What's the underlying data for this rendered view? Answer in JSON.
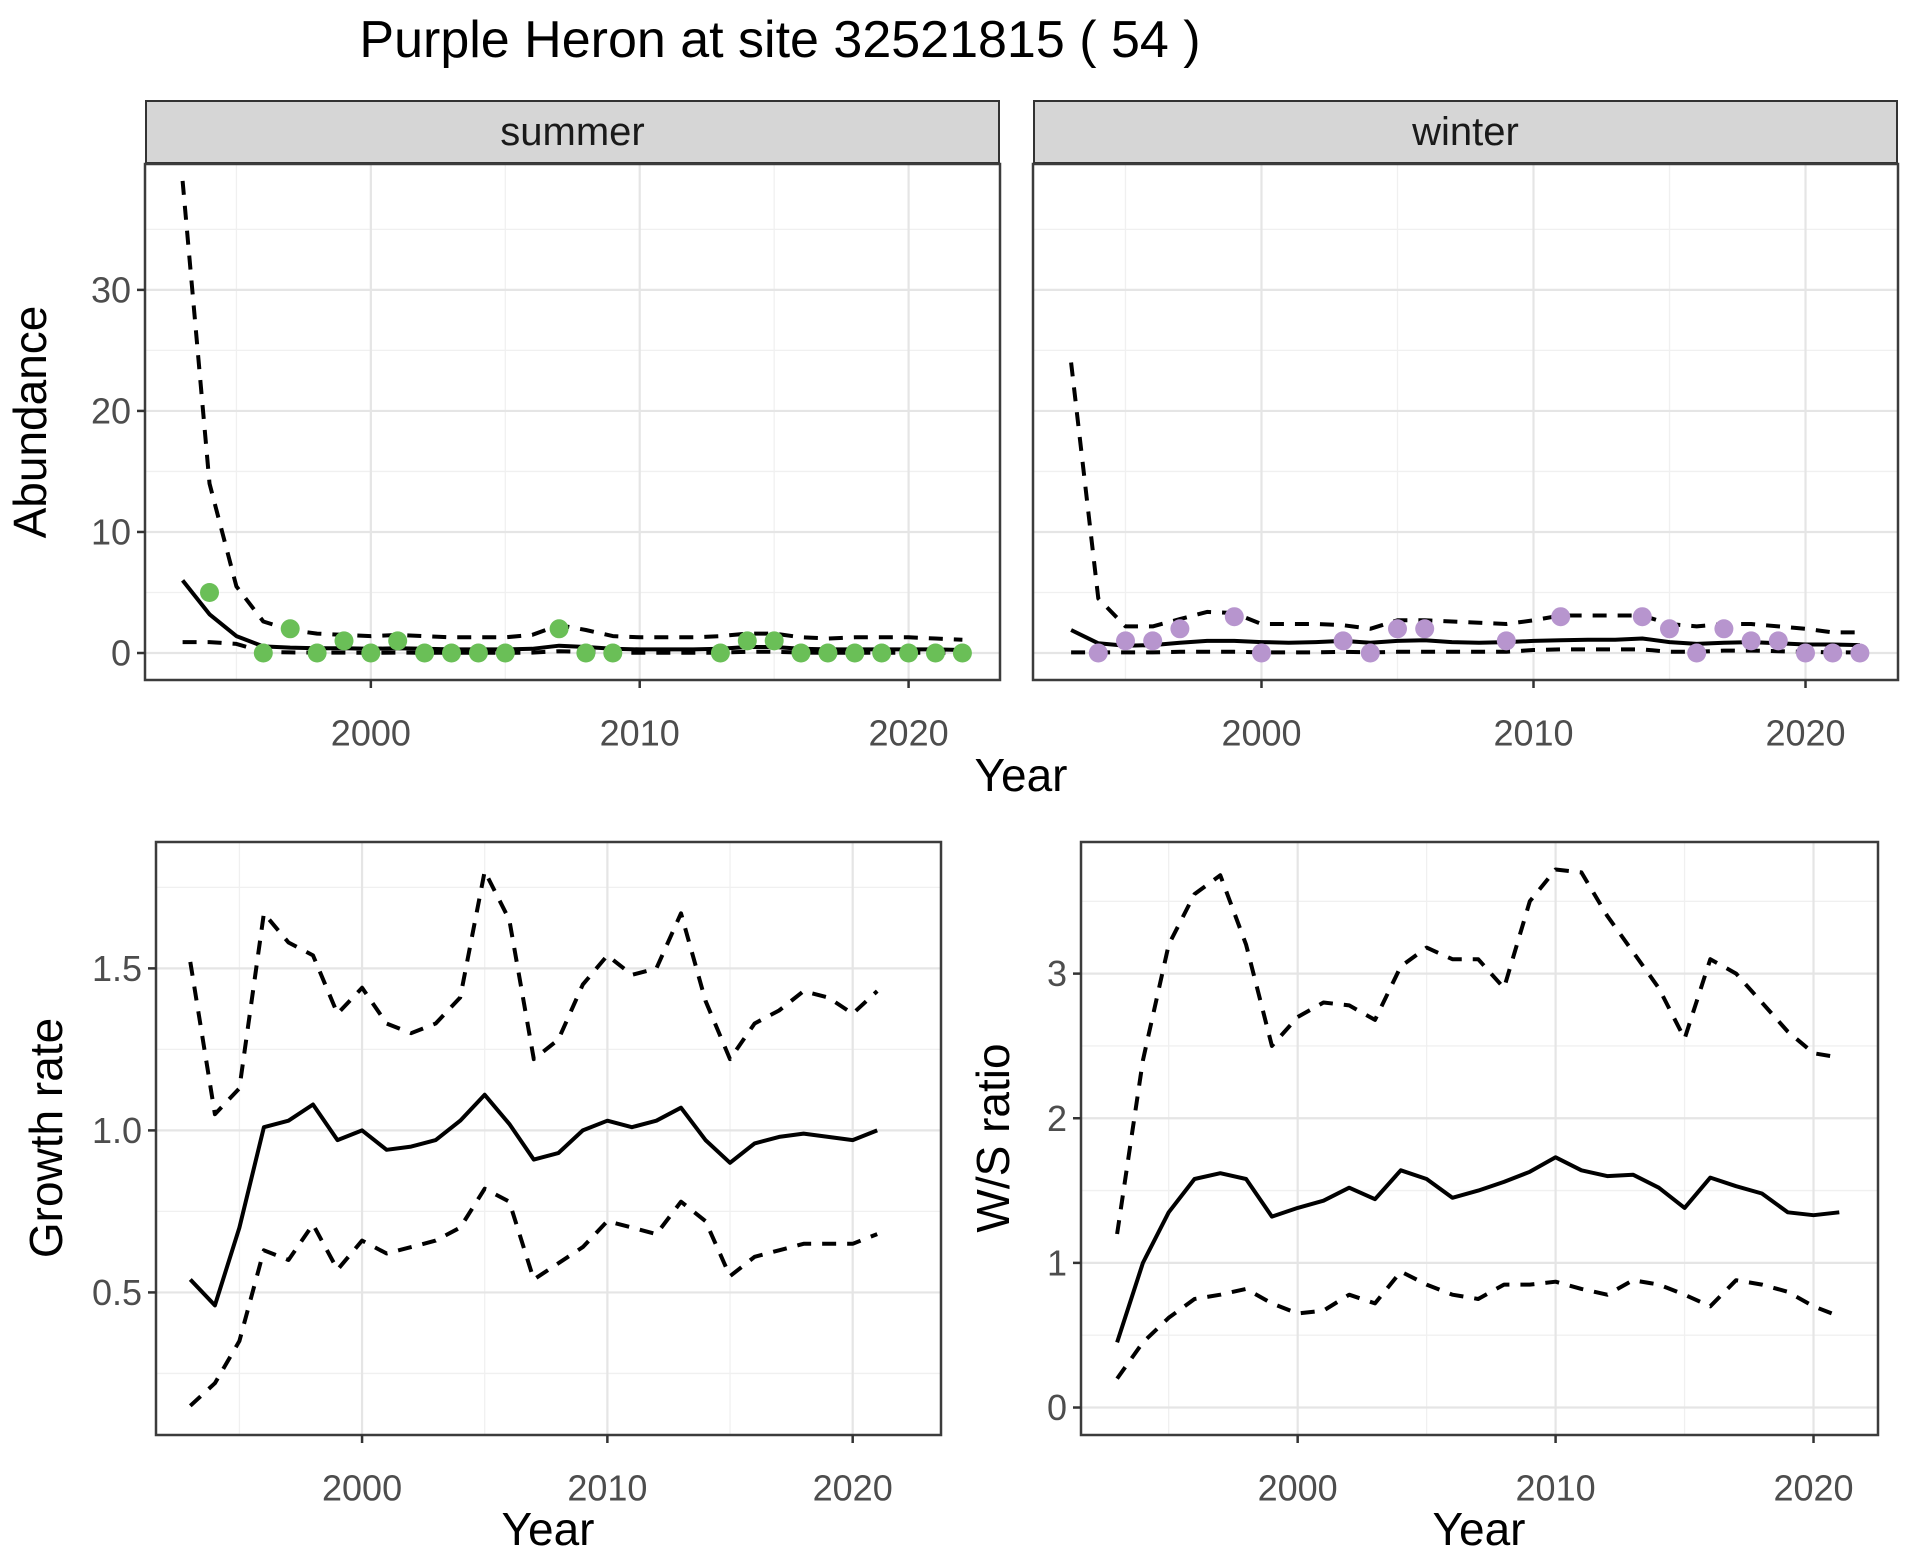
{
  "title": "Purple Heron at site 32521815 ( 54 )",
  "facets": {
    "summer_label": "summer",
    "winter_label": "winter"
  },
  "axes": {
    "abundance_label": "Abundance",
    "year_label": "Year",
    "growth_label": "Growth rate",
    "ws_label": "W/S ratio"
  },
  "colors": {
    "summer_points": "#6abf57",
    "winter_points": "#b795ce",
    "line": "#000000",
    "strip_bg": "#d6d6d6"
  },
  "chart_data": [
    {
      "id": "abundance_summer",
      "type": "line",
      "facet": "summer",
      "xlabel": "Year",
      "ylabel": "Abundance",
      "xlim": [
        1991.6,
        2023.4
      ],
      "ylim": [
        -2.23,
        40.4
      ],
      "xticks": [
        2000,
        2010,
        2020
      ],
      "xtick_labels": [
        "2000",
        "2010",
        "2020"
      ],
      "yticks": [
        0,
        10,
        20,
        30
      ],
      "ytick_labels": [
        "0",
        "10",
        "20",
        "30"
      ],
      "x_minor": [
        1995,
        2005,
        2015
      ],
      "y_minor": [
        5,
        15,
        25,
        35
      ],
      "show_y_labels": true,
      "series": [
        {
          "name": "median",
          "style": "solid",
          "x": [
            1993,
            1994,
            1995,
            1996,
            1997,
            1998,
            1999,
            2000,
            2001,
            2002,
            2003,
            2004,
            2005,
            2006,
            2007,
            2008,
            2009,
            2010,
            2011,
            2012,
            2013,
            2014,
            2015,
            2016,
            2017,
            2018,
            2019,
            2020,
            2021,
            2022
          ],
          "y": [
            6,
            3.2,
            1.4,
            0.55,
            0.45,
            0.4,
            0.4,
            0.35,
            0.4,
            0.35,
            0.3,
            0.3,
            0.3,
            0.35,
            0.6,
            0.5,
            0.35,
            0.3,
            0.3,
            0.3,
            0.35,
            0.5,
            0.5,
            0.35,
            0.3,
            0.3,
            0.3,
            0.3,
            0.3,
            0.25
          ]
        },
        {
          "name": "upper_ci",
          "style": "dashed",
          "x": [
            1993,
            1994,
            1995,
            1996,
            1997,
            1998,
            1999,
            2000,
            2001,
            2002,
            2003,
            2004,
            2005,
            2006,
            2007,
            2008,
            2009,
            2010,
            2011,
            2012,
            2013,
            2014,
            2015,
            2016,
            2017,
            2018,
            2019,
            2020,
            2021,
            2022
          ],
          "y": [
            39,
            14,
            5.5,
            2.6,
            1.9,
            1.6,
            1.5,
            1.4,
            1.5,
            1.4,
            1.3,
            1.3,
            1.3,
            1.5,
            2.3,
            1.9,
            1.4,
            1.3,
            1.3,
            1.3,
            1.4,
            1.6,
            1.6,
            1.3,
            1.2,
            1.3,
            1.3,
            1.3,
            1.2,
            1.1
          ]
        },
        {
          "name": "lower_ci",
          "style": "dashed",
          "x": [
            1993,
            1994,
            1995,
            1996,
            1997,
            1998,
            1999,
            2000,
            2001,
            2002,
            2003,
            2004,
            2005,
            2006,
            2007,
            2008,
            2009,
            2010,
            2011,
            2012,
            2013,
            2014,
            2015,
            2016,
            2017,
            2018,
            2019,
            2020,
            2021,
            2022
          ],
          "y": [
            0.9,
            0.9,
            0.75,
            0.1,
            0.05,
            0.03,
            0.03,
            0.02,
            0.03,
            0.02,
            0.02,
            0.02,
            0.02,
            0.03,
            0.15,
            0.1,
            0.03,
            0.02,
            0.02,
            0.02,
            0.03,
            0.1,
            0.1,
            0.03,
            0.02,
            0.02,
            0.02,
            0.02,
            0.02,
            0.01
          ]
        }
      ],
      "points": {
        "name": "observed_summer_counts",
        "color": "#6abf57",
        "x": [
          1994,
          1996,
          1997,
          1998,
          1999,
          2000,
          2001,
          2002,
          2003,
          2004,
          2005,
          2007,
          2008,
          2009,
          2013,
          2014,
          2015,
          2016,
          2017,
          2018,
          2019,
          2020,
          2021,
          2022
        ],
        "y": [
          5,
          0,
          2,
          0,
          1,
          0,
          1,
          0,
          0,
          0,
          0,
          2,
          0,
          0,
          0,
          1,
          1,
          0,
          0,
          0,
          0,
          0,
          0,
          0
        ]
      }
    },
    {
      "id": "abundance_winter",
      "type": "line",
      "facet": "winter",
      "xlabel": "Year",
      "ylabel": "Abundance",
      "xlim": [
        1991.6,
        2023.4
      ],
      "ylim": [
        -2.23,
        40.4
      ],
      "xticks": [
        2000,
        2010,
        2020
      ],
      "xtick_labels": [
        "2000",
        "2010",
        "2020"
      ],
      "yticks": [
        0,
        10,
        20,
        30
      ],
      "ytick_labels": [
        "0",
        "10",
        "20",
        "30"
      ],
      "x_minor": [
        1995,
        2005,
        2015
      ],
      "y_minor": [
        5,
        15,
        25,
        35
      ],
      "show_y_labels": false,
      "series": [
        {
          "name": "median",
          "style": "solid",
          "x": [
            1993,
            1994,
            1995,
            1996,
            1997,
            1998,
            1999,
            2000,
            2001,
            2002,
            2003,
            2004,
            2005,
            2006,
            2007,
            2008,
            2009,
            2010,
            2011,
            2012,
            2013,
            2014,
            2015,
            2016,
            2017,
            2018,
            2019,
            2020,
            2021,
            2022
          ],
          "y": [
            1.9,
            0.8,
            0.6,
            0.65,
            0.85,
            1.0,
            1.0,
            0.9,
            0.85,
            0.9,
            1.0,
            0.85,
            1.0,
            1.05,
            0.9,
            0.85,
            0.9,
            1.0,
            1.05,
            1.1,
            1.1,
            1.2,
            0.9,
            0.75,
            0.85,
            0.9,
            0.8,
            0.7,
            0.7,
            0.65
          ]
        },
        {
          "name": "upper_ci",
          "style": "dashed",
          "x": [
            1993,
            1994,
            1995,
            1996,
            1997,
            1998,
            1999,
            2000,
            2001,
            2002,
            2003,
            2004,
            2005,
            2006,
            2007,
            2008,
            2009,
            2010,
            2011,
            2012,
            2013,
            2014,
            2015,
            2016,
            2017,
            2018,
            2019,
            2020,
            2021,
            2022
          ],
          "y": [
            24,
            4.5,
            2.2,
            2.2,
            2.8,
            3.4,
            3.3,
            2.4,
            2.4,
            2.4,
            2.3,
            2.0,
            2.7,
            2.7,
            2.6,
            2.5,
            2.4,
            2.7,
            3.1,
            3.1,
            3.1,
            3.1,
            2.4,
            2.2,
            2.4,
            2.4,
            2.2,
            2.0,
            1.7,
            1.7
          ]
        },
        {
          "name": "lower_ci",
          "style": "dashed",
          "x": [
            1993,
            1994,
            1995,
            1996,
            1997,
            1998,
            1999,
            2000,
            2001,
            2002,
            2003,
            2004,
            2005,
            2006,
            2007,
            2008,
            2009,
            2010,
            2011,
            2012,
            2013,
            2014,
            2015,
            2016,
            2017,
            2018,
            2019,
            2020,
            2021,
            2022
          ],
          "y": [
            0.05,
            0.05,
            0.05,
            0.05,
            0.1,
            0.1,
            0.1,
            0.05,
            0.05,
            0.05,
            0.1,
            0.05,
            0.1,
            0.1,
            0.1,
            0.1,
            0.1,
            0.25,
            0.3,
            0.3,
            0.3,
            0.3,
            0.1,
            0.1,
            0.2,
            0.2,
            0.15,
            0.1,
            0.05,
            0.05
          ]
        }
      ],
      "points": {
        "name": "observed_winter_counts",
        "color": "#b795ce",
        "x": [
          1994,
          1995,
          1996,
          1997,
          1999,
          2000,
          2003,
          2004,
          2005,
          2006,
          2009,
          2011,
          2014,
          2015,
          2016,
          2017,
          2018,
          2019,
          2020,
          2021,
          2022
        ],
        "y": [
          0,
          1,
          1,
          2,
          3,
          0,
          1,
          0,
          2,
          2,
          1,
          3,
          3,
          2,
          0,
          2,
          1,
          1,
          0,
          0,
          0
        ]
      }
    },
    {
      "id": "growth_rate",
      "type": "line",
      "xlabel": "Year",
      "ylabel": "Growth rate",
      "xlim": [
        1991.6,
        2023.6
      ],
      "ylim": [
        0.06,
        1.89
      ],
      "xticks": [
        2000,
        2010,
        2020
      ],
      "xtick_labels": [
        "2000",
        "2010",
        "2020"
      ],
      "yticks": [
        0.5,
        1.0,
        1.5
      ],
      "ytick_labels": [
        "0.5",
        "1.0",
        "1.5"
      ],
      "x_minor": [
        1995,
        2005,
        2015
      ],
      "y_minor": [
        0.25,
        0.75,
        1.25,
        1.75
      ],
      "show_y_labels": true,
      "series": [
        {
          "name": "median",
          "style": "solid",
          "x": [
            1993,
            1994,
            1995,
            1996,
            1997,
            1998,
            1999,
            2000,
            2001,
            2002,
            2003,
            2004,
            2005,
            2006,
            2007,
            2008,
            2009,
            2010,
            2011,
            2012,
            2013,
            2014,
            2015,
            2016,
            2017,
            2018,
            2019,
            2020,
            2021
          ],
          "y": [
            0.54,
            0.46,
            0.7,
            1.01,
            1.03,
            1.08,
            0.97,
            1.0,
            0.94,
            0.95,
            0.97,
            1.03,
            1.11,
            1.02,
            0.91,
            0.93,
            1.0,
            1.03,
            1.01,
            1.03,
            1.07,
            0.97,
            0.9,
            0.96,
            0.98,
            0.99,
            0.98,
            0.97,
            1.0
          ]
        },
        {
          "name": "upper_ci",
          "style": "dashed",
          "x": [
            1993,
            1994,
            1995,
            1996,
            1997,
            1998,
            1999,
            2000,
            2001,
            2002,
            2003,
            2004,
            2005,
            2006,
            2007,
            2008,
            2009,
            2010,
            2011,
            2012,
            2013,
            2014,
            2015,
            2016,
            2017,
            2018,
            2019,
            2020,
            2021
          ],
          "y": [
            1.52,
            1.05,
            1.13,
            1.67,
            1.58,
            1.54,
            1.36,
            1.44,
            1.33,
            1.3,
            1.33,
            1.41,
            1.8,
            1.65,
            1.22,
            1.28,
            1.45,
            1.54,
            1.48,
            1.5,
            1.67,
            1.4,
            1.22,
            1.33,
            1.37,
            1.43,
            1.41,
            1.36,
            1.43
          ]
        },
        {
          "name": "lower_ci",
          "style": "dashed",
          "x": [
            1993,
            1994,
            1995,
            1996,
            1997,
            1998,
            1999,
            2000,
            2001,
            2002,
            2003,
            2004,
            2005,
            2006,
            2007,
            2008,
            2009,
            2010,
            2011,
            2012,
            2013,
            2014,
            2015,
            2016,
            2017,
            2018,
            2019,
            2020,
            2021
          ],
          "y": [
            0.15,
            0.22,
            0.35,
            0.63,
            0.6,
            0.71,
            0.57,
            0.66,
            0.62,
            0.64,
            0.66,
            0.7,
            0.82,
            0.78,
            0.54,
            0.59,
            0.64,
            0.72,
            0.7,
            0.68,
            0.78,
            0.72,
            0.55,
            0.61,
            0.63,
            0.65,
            0.65,
            0.65,
            0.68
          ]
        }
      ]
    },
    {
      "id": "ws_ratio",
      "type": "line",
      "xlabel": "Year",
      "ylabel": "W/S ratio",
      "xlim": [
        1991.6,
        2022.5
      ],
      "ylim": [
        -0.19,
        3.91
      ],
      "xticks": [
        2000,
        2010,
        2020
      ],
      "xtick_labels": [
        "2000",
        "2010",
        "2020"
      ],
      "yticks": [
        0,
        1,
        2,
        3
      ],
      "ytick_labels": [
        "0",
        "1",
        "2",
        "3"
      ],
      "x_minor": [
        1995,
        2005,
        2015
      ],
      "y_minor": [
        0.5,
        1.5,
        2.5,
        3.5
      ],
      "show_y_labels": true,
      "series": [
        {
          "name": "median",
          "style": "solid",
          "x": [
            1993,
            1994,
            1995,
            1996,
            1997,
            1998,
            1999,
            2000,
            2001,
            2002,
            2003,
            2004,
            2005,
            2006,
            2007,
            2008,
            2009,
            2010,
            2011,
            2012,
            2013,
            2014,
            2015,
            2016,
            2017,
            2018,
            2019,
            2020,
            2021
          ],
          "y": [
            0.45,
            1.0,
            1.35,
            1.58,
            1.62,
            1.58,
            1.32,
            1.38,
            1.43,
            1.52,
            1.44,
            1.64,
            1.58,
            1.45,
            1.5,
            1.56,
            1.63,
            1.73,
            1.64,
            1.6,
            1.61,
            1.52,
            1.38,
            1.59,
            1.53,
            1.48,
            1.35,
            1.33,
            1.35
          ]
        },
        {
          "name": "upper_ci",
          "style": "dashed",
          "x": [
            1993,
            1994,
            1995,
            1996,
            1997,
            1998,
            1999,
            2000,
            2001,
            2002,
            2003,
            2004,
            2005,
            2006,
            2007,
            2008,
            2009,
            2010,
            2011,
            2012,
            2013,
            2014,
            2015,
            2016,
            2017,
            2018,
            2019,
            2020,
            2021
          ],
          "y": [
            1.2,
            2.4,
            3.2,
            3.55,
            3.68,
            3.2,
            2.5,
            2.7,
            2.8,
            2.78,
            2.68,
            3.05,
            3.18,
            3.1,
            3.1,
            2.9,
            3.5,
            3.72,
            3.7,
            3.4,
            3.15,
            2.9,
            2.55,
            3.1,
            3.0,
            2.8,
            2.6,
            2.45,
            2.42
          ]
        },
        {
          "name": "lower_ci",
          "style": "dashed",
          "x": [
            1993,
            1994,
            1995,
            1996,
            1997,
            1998,
            1999,
            2000,
            2001,
            2002,
            2003,
            2004,
            2005,
            2006,
            2007,
            2008,
            2009,
            2010,
            2011,
            2012,
            2013,
            2014,
            2015,
            2016,
            2017,
            2018,
            2019,
            2020,
            2021
          ],
          "y": [
            0.2,
            0.45,
            0.62,
            0.75,
            0.78,
            0.82,
            0.72,
            0.65,
            0.67,
            0.78,
            0.72,
            0.94,
            0.85,
            0.78,
            0.75,
            0.85,
            0.85,
            0.87,
            0.82,
            0.78,
            0.88,
            0.85,
            0.78,
            0.7,
            0.88,
            0.85,
            0.8,
            0.7,
            0.63
          ]
        }
      ]
    }
  ]
}
